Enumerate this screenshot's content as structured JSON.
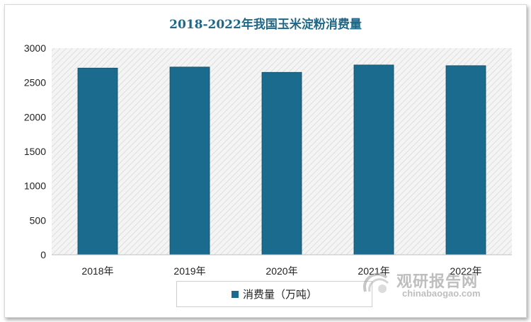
{
  "chart_data": {
    "type": "bar",
    "title": "2018-2022年我国玉米淀粉消费量",
    "categories": [
      "2018年",
      "2019年",
      "2020年",
      "2021年",
      "2022年"
    ],
    "series": [
      {
        "name": "消费量（万吨）",
        "values": [
          2710,
          2725,
          2648,
          2755,
          2745
        ],
        "color": "#1b6b8e"
      }
    ],
    "ylim": [
      0,
      3000
    ],
    "yticks": [
      0,
      500,
      1000,
      1500,
      2000,
      2500,
      3000
    ],
    "plot_background": "hatched light gray",
    "legend_position": "bottom"
  },
  "watermark": {
    "cn": "观研报告网",
    "en": "chinabaogao.com"
  }
}
